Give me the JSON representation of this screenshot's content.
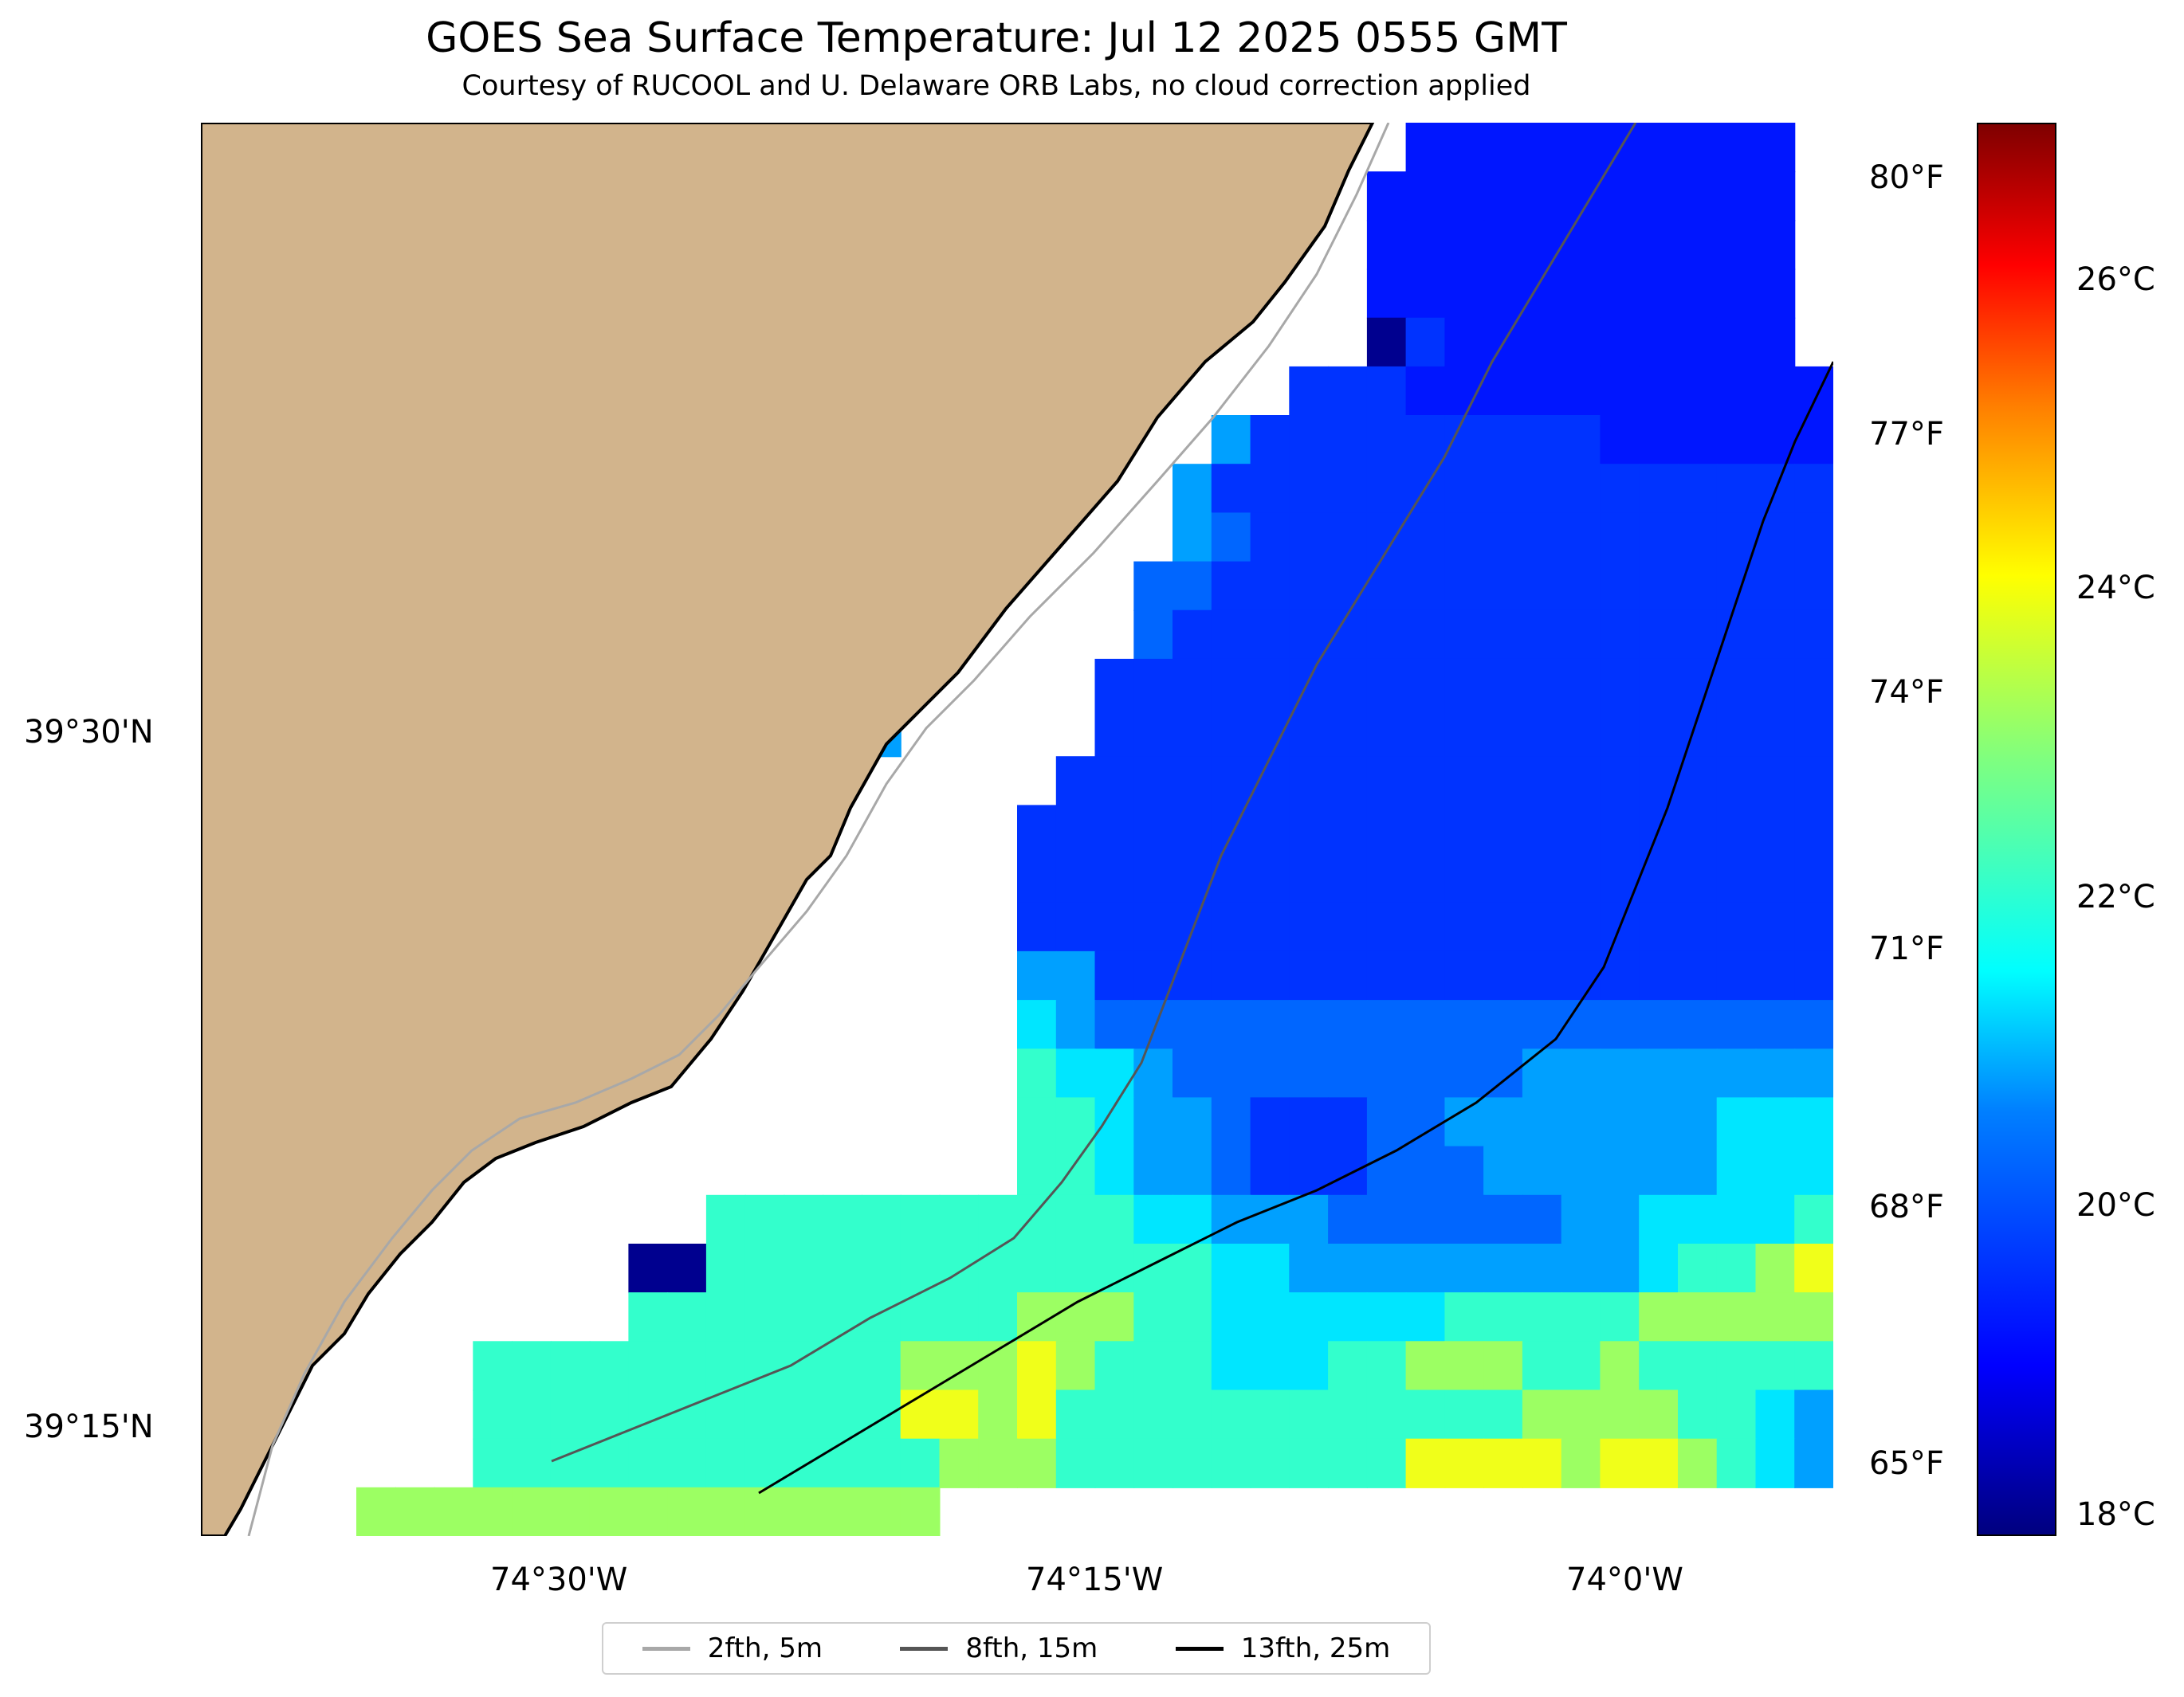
{
  "title": "GOES Sea Surface Temperature: Jul 12 2025 0555 GMT",
  "subtitle": "Courtesy of RUCOOL and U. Delaware ORB Labs, no cloud correction applied",
  "map": {
    "x_ticks": [
      "74°30'W",
      "74°15'W",
      "74°0'W"
    ],
    "y_ticks": [
      "39°30'N",
      "39°15'N"
    ],
    "land_color": "#d2b48c",
    "coast_color": "#000000",
    "no_data_color": "#ffffff",
    "sst_grid": {
      "cols": 42,
      "rows": 29,
      "values": [
        "NNNNNNNNNNNNNNNNNNNNNNNNNNNNNNN2222222222",
        "NNNNNNNNNNNNNNNNNNNNNNNNNNNNNN22222222222",
        "NNNNNNNNNNNNNNNNNNNNNNNNNNNNNN22222222222",
        "NNNNNNNNNNNNNNNNNNNNNNNNNNNNNN22222222222",
        "NNNNNNNNNNNNNNNNNNNNNNNNNNNNNN13222222222",
        "NNNNNNNNNNNNNNNNNNNNNNNNNNNN33322222222222",
        "NNNNNNNNNNNNNNNNNNNNNNNNNN5333333333222222",
        "NNNNNNNNNNNNNNNNNNNNNNNNN53333333333333333",
        "NNNNNNNNNNNNNNNNNNNNNNNNN54333333333333333",
        "NNNNNNNNNNNNNNNNNNNNNNNN443333333333333333",
        "NNNNNNNNNNNNNNN555NNNNNN433333333333333333",
        "NNNNNNNNNNNNNNN555NNNNN3333333333333333333",
        "NNNNNNNNNNNNNNNN55NNNNN3333333333333333333",
        "NNNNNNNNNNNNNNNNNNNNNN33333333333333333333",
        "NNNNNNNNNNNNNNNNNNNNN333333333333333333333",
        "NNNNNNNNNNNNNNNNNNNNN333333333333333333333",
        "NNNNNNNNNNNNNNNNNNNNN333333333333333333333",
        "NNNNNNNNNNNNNNNNNNNNN553333333333333333333",
        "NNNNNNNNNNNNNNNNNNNNN654444444444444444444",
        "NNNNNNNNNNNNNNNNNNNNN766544444444455555555",
        "NNNNNNNNNNNNNNNNNNNNN776554333445555555666",
        "NNNNNNNNNNNNNNNNNNNNN776554333444555555666",
        "NNNNNNNNNNNNN7777777777766555444444556666777",
        "NNNNNNNNNNN11777777777777766555555555677899",
        "NNNNNNNNNNN777777777788877666666777778888887",
        "NNNNNNN777777777778889877766677888778777777",
        "NNNNNNN777777777779989777777777777888877655",
        "NNNNNNN777777777777888777777777999989987655",
        "NNNN888888888888888NNNNNNNNNNNNNNNNNNNNNN"
      ]
    }
  },
  "colorbar": {
    "celsius_ticks": [
      "18°C",
      "20°C",
      "22°C",
      "24°C",
      "26°C"
    ],
    "celsius_values": [
      18,
      20,
      22,
      24,
      26
    ],
    "fahrenheit_ticks": [
      "65°F",
      "68°F",
      "71°F",
      "74°F",
      "77°F",
      "80°F"
    ],
    "fahrenheit_values": [
      65,
      68,
      71,
      74,
      77,
      80
    ],
    "range_c": [
      17.8,
      27.4
    ]
  },
  "legend": [
    {
      "label": "2fth, 5m",
      "color": "#a8a8a8"
    },
    {
      "label": "8fth, 15m",
      "color": "#555555"
    },
    {
      "label": "13fth, 25m",
      "color": "#000000"
    }
  ]
}
